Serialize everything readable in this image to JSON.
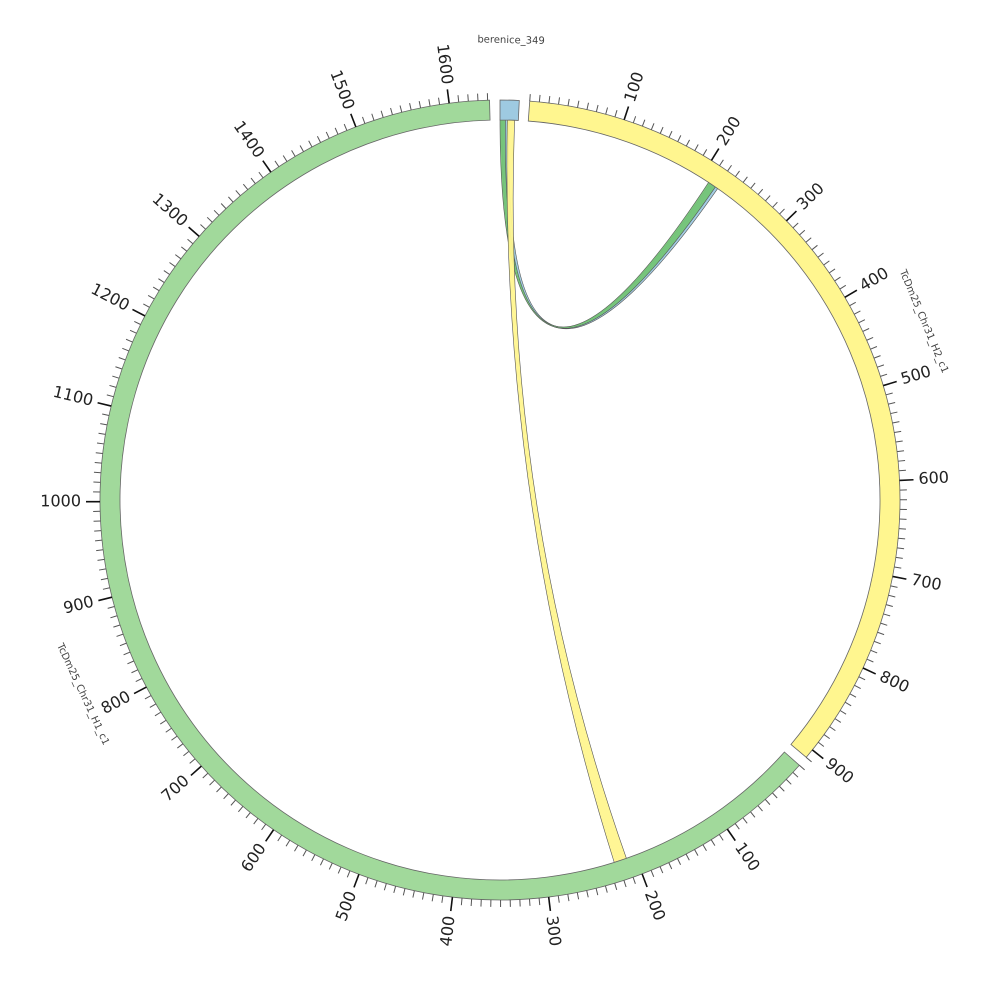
{
  "chart_data": {
    "type": "chord",
    "segments": [
      {
        "name": "berenice_349",
        "length": 20,
        "color": "#9ecae1"
      },
      {
        "name": "TcDm25_Chr31_H2_c1",
        "length": 910,
        "color": "#fff68f",
        "ticks": [
          100,
          200,
          300,
          400,
          500,
          600,
          700,
          800,
          900
        ]
      },
      {
        "name": "TcDm25_Chr31_H1_c1",
        "length": 1642,
        "color": "#a1d99b",
        "ticks": [
          100,
          200,
          300,
          400,
          500,
          600,
          700,
          800,
          900,
          1000,
          1100,
          1200,
          1300,
          1400,
          1500,
          1600
        ]
      }
    ],
    "minor_tick_step": 10,
    "links": [
      {
        "source": {
          "segment": "berenice_349",
          "start": 2,
          "end": 10
        },
        "target": {
          "segment": "TcDm25_Chr31_H2_c1",
          "start": 212,
          "end": 222
        },
        "color": "#9ecae1"
      },
      {
        "source": {
          "segment": "berenice_349",
          "start": 0,
          "end": 6
        },
        "target": {
          "segment": "TcDm25_Chr31_H2_c1",
          "start": 210,
          "end": 219
        },
        "color": "#74c476"
      },
      {
        "source": {
          "segment": "berenice_349",
          "start": 8,
          "end": 16
        },
        "target": {
          "segment": "TcDm25_Chr31_H1_c1",
          "start": 210,
          "end": 224
        },
        "color": "#fff68f"
      }
    ]
  }
}
